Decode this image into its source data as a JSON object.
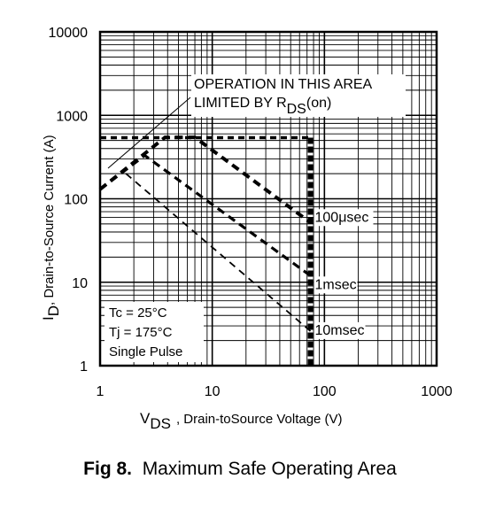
{
  "chart_data": {
    "type": "line",
    "xscale": "log",
    "yscale": "log",
    "xlim": [
      1,
      1000
    ],
    "ylim": [
      1,
      10000
    ],
    "x_ticks": [
      "1",
      "10",
      "100",
      "1000"
    ],
    "y_ticks": [
      "1",
      "10",
      "100",
      "1000",
      "10000"
    ],
    "grid": true,
    "ylabel": {
      "main": "I",
      "sub": "D",
      "rest": ", Drain-to-Source Current (A)"
    },
    "xlabel": {
      "main": "V",
      "sub": "DS",
      "rest": ", Drain-toSource Voltage (V)"
    },
    "annotation": {
      "line1": "OPERATION IN THIS AREA",
      "line2_main": "LIMITED BY R",
      "line2_sub": "DS",
      "line2_tail": "(on)"
    },
    "conditions": [
      "Tc = 25°C",
      "Tj = 175°C",
      "Single Pulse"
    ],
    "limits": {
      "current_A": 540,
      "voltage_V": 75
    },
    "series": [
      {
        "name": "100μsec",
        "x": [
          1,
          3.8,
          7,
          75
        ],
        "y": [
          130,
          545,
          545,
          52
        ]
      },
      {
        "name": "1msec",
        "x": [
          1,
          2.5,
          75
        ],
        "y": [
          130,
          330,
          12
        ]
      },
      {
        "name": "10msec",
        "x": [
          1.7,
          75
        ],
        "y": [
          200,
          2.6
        ]
      }
    ]
  },
  "caption": {
    "fig": "Fig 8.",
    "text": "Maximum Safe Operating Area"
  }
}
